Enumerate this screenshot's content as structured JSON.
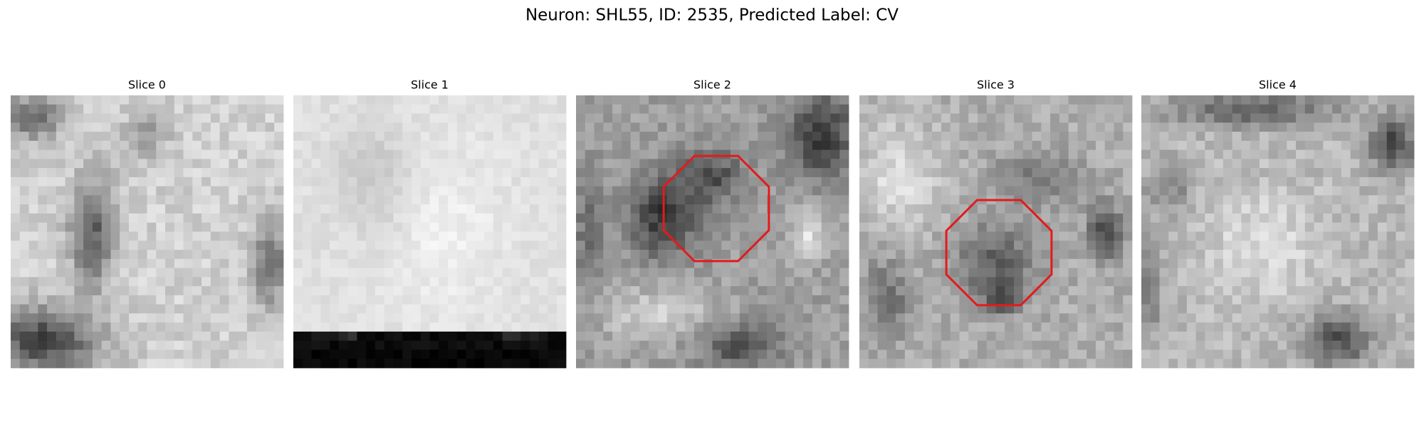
{
  "title": "Neuron: SHL55, ID: 2535, Predicted Label: CV",
  "panels": [
    {
      "title": "Slice 0"
    },
    {
      "title": "Slice 1"
    },
    {
      "title": "Slice 2"
    },
    {
      "title": "Slice 3"
    },
    {
      "title": "Slice 4"
    }
  ]
}
